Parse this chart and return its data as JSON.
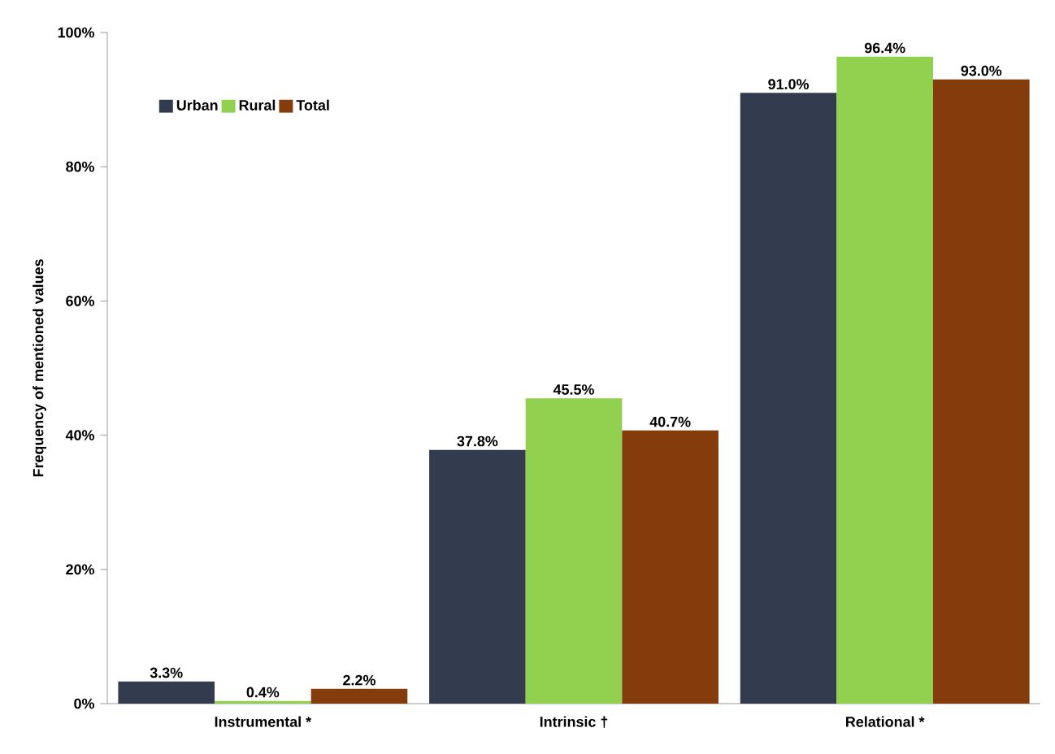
{
  "chart_data": {
    "type": "bar",
    "ylabel": "Frequency of mentioned values",
    "categories": [
      "Instrumental *",
      "Intrinsic †",
      "Relational *"
    ],
    "series": [
      {
        "name": "Urban",
        "color": "#323c4e",
        "values": [
          3.3,
          37.8,
          91.0
        ],
        "value_labels": [
          "3.3%",
          "37.8%",
          "91.0%"
        ]
      },
      {
        "name": "Rural",
        "color": "#92d050",
        "values": [
          0.4,
          45.5,
          96.4
        ],
        "value_labels": [
          "0.4%",
          "45.5%",
          "96.4%"
        ]
      },
      {
        "name": "Total",
        "color": "#843c0c",
        "values": [
          2.2,
          40.7,
          93.0
        ],
        "value_labels": [
          "2.2%",
          "40.7%",
          "93.0%"
        ]
      }
    ],
    "ylim": [
      0,
      100
    ],
    "yticks": [
      {
        "value": 0,
        "label": "0%"
      },
      {
        "value": 20,
        "label": "20%"
      },
      {
        "value": 40,
        "label": "40%"
      },
      {
        "value": 60,
        "label": "60%"
      },
      {
        "value": 80,
        "label": "80%"
      },
      {
        "value": 100,
        "label": "100%"
      }
    ],
    "legend": "top left"
  }
}
